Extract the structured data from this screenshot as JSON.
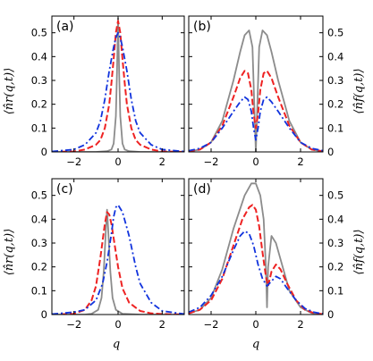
{
  "figure": {
    "xlabel": "q",
    "ylabel_left": "⟨n̂r(q,t)⟩",
    "ylabel_right": "⟨n̂f(q,t)⟩"
  },
  "colors": {
    "gray": "#8c8c8c",
    "red": "#ee2222",
    "blue": "#1133dd"
  },
  "chart_data": [
    {
      "type": "line",
      "panel": "(a)",
      "xlim": [
        -3,
        3
      ],
      "ylim": [
        0,
        0.57
      ],
      "xticks": [
        "−2",
        "0",
        "2"
      ],
      "yticks": [
        "0",
        "0.1",
        "0.2",
        "0.3",
        "0.4",
        "0.5"
      ],
      "grid": false,
      "series": [
        {
          "style": "solid",
          "color": "gray",
          "x": [
            -3,
            -2,
            -1,
            -0.5,
            -0.3,
            -0.2,
            -0.1,
            -0.05,
            0,
            0.05,
            0.1,
            0.2,
            0.3,
            0.5,
            1,
            2,
            3
          ],
          "y": [
            0,
            0,
            0,
            0.003,
            0.01,
            0.035,
            0.15,
            0.33,
            0.56,
            0.33,
            0.15,
            0.035,
            0.01,
            0.003,
            0,
            0,
            0
          ]
        },
        {
          "style": "dashed",
          "color": "red",
          "x": [
            -3,
            -2,
            -1.5,
            -1,
            -0.8,
            -0.6,
            -0.4,
            -0.3,
            -0.2,
            -0.1,
            0,
            0.1,
            0.2,
            0.3,
            0.4,
            0.6,
            0.8,
            1,
            1.5,
            2,
            3
          ],
          "y": [
            0,
            0.002,
            0.01,
            0.03,
            0.05,
            0.1,
            0.2,
            0.29,
            0.39,
            0.5,
            0.55,
            0.5,
            0.39,
            0.29,
            0.2,
            0.1,
            0.05,
            0.03,
            0.01,
            0.002,
            0
          ]
        },
        {
          "style": "dash-dot",
          "color": "blue",
          "x": [
            -3,
            -2,
            -1.5,
            -1,
            -0.8,
            -0.6,
            -0.4,
            -0.2,
            -0.1,
            0,
            0.1,
            0.2,
            0.4,
            0.6,
            0.8,
            1,
            1.5,
            2,
            3
          ],
          "y": [
            0.002,
            0.01,
            0.03,
            0.08,
            0.13,
            0.22,
            0.34,
            0.44,
            0.48,
            0.5,
            0.48,
            0.44,
            0.34,
            0.22,
            0.13,
            0.08,
            0.03,
            0.01,
            0.002
          ]
        }
      ]
    },
    {
      "type": "line",
      "panel": "(b)",
      "xlim": [
        -3,
        3
      ],
      "ylim": [
        0,
        0.57
      ],
      "xticks": [
        "−2",
        "0",
        "2"
      ],
      "yticks": [
        "0",
        "0.1",
        "0.2",
        "0.3",
        "0.4",
        "0.5"
      ],
      "grid": false,
      "series": [
        {
          "style": "solid",
          "color": "gray",
          "x": [
            -3,
            -2.5,
            -2,
            -1.5,
            -1,
            -0.7,
            -0.5,
            -0.3,
            -0.15,
            -0.07,
            0,
            0.07,
            0.15,
            0.3,
            0.5,
            0.7,
            1,
            1.5,
            2,
            2.5,
            3
          ],
          "y": [
            0.002,
            0.01,
            0.04,
            0.13,
            0.3,
            0.42,
            0.49,
            0.51,
            0.44,
            0.2,
            0.0,
            0.2,
            0.44,
            0.51,
            0.49,
            0.42,
            0.3,
            0.13,
            0.04,
            0.01,
            0.002
          ]
        },
        {
          "style": "dashed",
          "color": "red",
          "x": [
            -3,
            -2.5,
            -2,
            -1.5,
            -1,
            -0.7,
            -0.5,
            -0.35,
            -0.2,
            -0.1,
            0,
            0.1,
            0.2,
            0.35,
            0.5,
            0.7,
            1,
            1.5,
            2,
            2.5,
            3
          ],
          "y": [
            0.003,
            0.01,
            0.04,
            0.11,
            0.23,
            0.31,
            0.34,
            0.33,
            0.26,
            0.16,
            0.1,
            0.16,
            0.26,
            0.33,
            0.34,
            0.31,
            0.23,
            0.11,
            0.04,
            0.01,
            0.003
          ]
        },
        {
          "style": "dash-dot",
          "color": "blue",
          "x": [
            -3,
            -2.5,
            -2,
            -1.5,
            -1,
            -0.7,
            -0.5,
            -0.35,
            -0.2,
            -0.1,
            0,
            0.1,
            0.2,
            0.35,
            0.5,
            0.7,
            1,
            1.5,
            2,
            2.5,
            3
          ],
          "y": [
            0.005,
            0.015,
            0.04,
            0.1,
            0.17,
            0.21,
            0.23,
            0.22,
            0.17,
            0.1,
            0.05,
            0.1,
            0.17,
            0.22,
            0.23,
            0.21,
            0.17,
            0.1,
            0.04,
            0.015,
            0.005
          ]
        }
      ]
    },
    {
      "type": "line",
      "panel": "(c)",
      "xlim": [
        -3,
        3
      ],
      "ylim": [
        0,
        0.57
      ],
      "xticks": [
        "−2",
        "0",
        "2"
      ],
      "yticks": [
        "0",
        "0.1",
        "0.2",
        "0.3",
        "0.4",
        "0.5"
      ],
      "grid": false,
      "series": [
        {
          "style": "solid",
          "color": "gray",
          "x": [
            -3,
            -1.5,
            -1.2,
            -0.9,
            -0.75,
            -0.65,
            -0.55,
            -0.5,
            -0.45,
            -0.35,
            -0.25,
            -0.1,
            0.2,
            1,
            3
          ],
          "y": [
            0,
            0,
            0.003,
            0.02,
            0.07,
            0.18,
            0.36,
            0.44,
            0.36,
            0.18,
            0.07,
            0.02,
            0.003,
            0,
            0
          ]
        },
        {
          "style": "dashed",
          "color": "red",
          "x": [
            -3,
            -2,
            -1.5,
            -1.2,
            -1,
            -0.8,
            -0.6,
            -0.5,
            -0.4,
            -0.3,
            -0.2,
            0,
            0.2,
            0.5,
            1,
            1.5,
            2,
            3
          ],
          "y": [
            0,
            0.003,
            0.02,
            0.06,
            0.12,
            0.24,
            0.38,
            0.43,
            0.42,
            0.38,
            0.32,
            0.2,
            0.11,
            0.05,
            0.015,
            0.005,
            0.002,
            0
          ]
        },
        {
          "style": "dash-dot",
          "color": "blue",
          "x": [
            -3,
            -2,
            -1.5,
            -1,
            -0.7,
            -0.5,
            -0.3,
            -0.2,
            -0.1,
            0,
            0.2,
            0.5,
            0.8,
            1,
            1.5,
            2,
            3
          ],
          "y": [
            0.002,
            0.01,
            0.02,
            0.06,
            0.13,
            0.22,
            0.34,
            0.41,
            0.45,
            0.46,
            0.43,
            0.33,
            0.2,
            0.13,
            0.05,
            0.015,
            0.002
          ]
        }
      ]
    },
    {
      "type": "line",
      "panel": "(d)",
      "xlim": [
        -3,
        3
      ],
      "ylim": [
        0,
        0.57
      ],
      "xticks": [
        "−2",
        "0",
        "2"
      ],
      "yticks": [
        "0",
        "0.1",
        "0.2",
        "0.3",
        "0.4",
        "0.5"
      ],
      "grid": false,
      "series": [
        {
          "style": "solid",
          "color": "gray",
          "x": [
            -3,
            -2.5,
            -2,
            -1.5,
            -1,
            -0.5,
            -0.2,
            0,
            0.2,
            0.35,
            0.45,
            0.5,
            0.55,
            0.7,
            0.9,
            1.2,
            1.5,
            2,
            2.5,
            3
          ],
          "y": [
            0.005,
            0.02,
            0.07,
            0.19,
            0.36,
            0.5,
            0.55,
            0.55,
            0.5,
            0.4,
            0.2,
            0.03,
            0.2,
            0.33,
            0.3,
            0.2,
            0.1,
            0.03,
            0.006,
            0.001
          ]
        },
        {
          "style": "dashed",
          "color": "red",
          "x": [
            -3,
            -2.5,
            -2,
            -1.5,
            -1,
            -0.6,
            -0.3,
            -0.15,
            0,
            0.15,
            0.3,
            0.45,
            0.55,
            0.7,
            0.9,
            1.1,
            1.4,
            1.8,
            2.2,
            2.6,
            3
          ],
          "y": [
            0.005,
            0.02,
            0.06,
            0.15,
            0.29,
            0.4,
            0.45,
            0.46,
            0.44,
            0.37,
            0.26,
            0.16,
            0.12,
            0.18,
            0.21,
            0.19,
            0.13,
            0.06,
            0.02,
            0.006,
            0.002
          ]
        },
        {
          "style": "dash-dot",
          "color": "blue",
          "x": [
            -3,
            -2.5,
            -2,
            -1.5,
            -1,
            -0.7,
            -0.5,
            -0.3,
            -0.1,
            0.1,
            0.3,
            0.5,
            0.7,
            0.9,
            1.1,
            1.4,
            1.8,
            2.2,
            2.6,
            3
          ],
          "y": [
            0.01,
            0.03,
            0.08,
            0.16,
            0.27,
            0.33,
            0.35,
            0.34,
            0.29,
            0.21,
            0.15,
            0.12,
            0.14,
            0.16,
            0.15,
            0.11,
            0.06,
            0.025,
            0.01,
            0.003
          ]
        }
      ]
    }
  ]
}
